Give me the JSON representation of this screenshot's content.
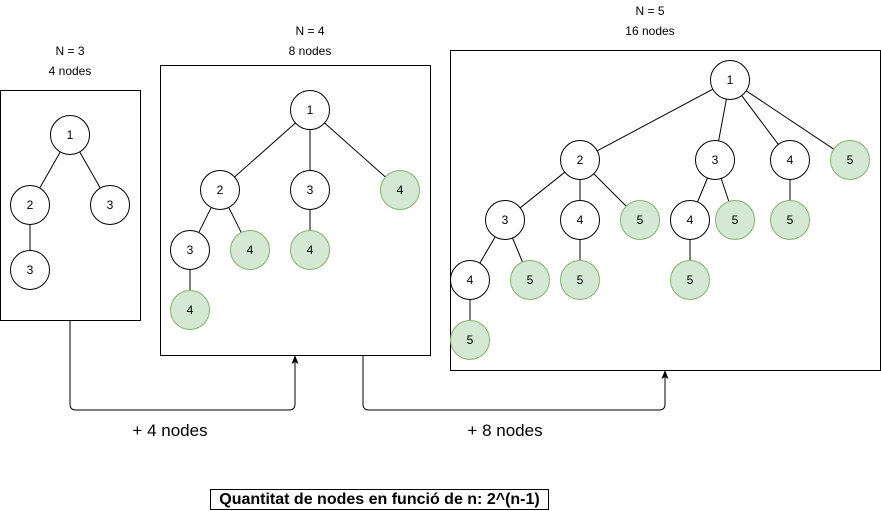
{
  "panels": [
    {
      "title": "N = 3",
      "subtitle": "4 nodes"
    },
    {
      "title": "N = 4",
      "subtitle": "8 nodes"
    },
    {
      "title": "N = 5",
      "subtitle": "16 nodes"
    }
  ],
  "arrows": [
    {
      "label": "+ 4 nodes"
    },
    {
      "label": "+ 8 nodes"
    }
  ],
  "formula": "Quantitat de nodes en funció de n: 2^(n-1)",
  "colors": {
    "new_node_fill": "#d5e8d4",
    "new_node_stroke": "#82b366",
    "node_fill": "#ffffff",
    "stroke": "#000000"
  },
  "trees": [
    {
      "nodes": [
        {
          "id": "a",
          "label": "1",
          "new": false
        },
        {
          "id": "b",
          "label": "2",
          "new": false
        },
        {
          "id": "c",
          "label": "3",
          "new": false
        },
        {
          "id": "d",
          "label": "3",
          "new": false
        }
      ],
      "edges": [
        [
          "a",
          "b"
        ],
        [
          "a",
          "c"
        ],
        [
          "b",
          "d"
        ]
      ]
    },
    {
      "nodes": [
        {
          "id": "a",
          "label": "1",
          "new": false
        },
        {
          "id": "b",
          "label": "2",
          "new": false
        },
        {
          "id": "c",
          "label": "3",
          "new": false
        },
        {
          "id": "d",
          "label": "4",
          "new": true
        },
        {
          "id": "e",
          "label": "3",
          "new": false
        },
        {
          "id": "f",
          "label": "4",
          "new": true
        },
        {
          "id": "g",
          "label": "4",
          "new": true
        },
        {
          "id": "h",
          "label": "4",
          "new": true
        }
      ],
      "edges": [
        [
          "a",
          "b"
        ],
        [
          "a",
          "c"
        ],
        [
          "a",
          "d"
        ],
        [
          "b",
          "e"
        ],
        [
          "b",
          "f"
        ],
        [
          "c",
          "g"
        ],
        [
          "e",
          "h"
        ]
      ]
    },
    {
      "nodes": [
        {
          "id": "a",
          "label": "1",
          "new": false
        },
        {
          "id": "b",
          "label": "2",
          "new": false
        },
        {
          "id": "c",
          "label": "3",
          "new": false
        },
        {
          "id": "d",
          "label": "4",
          "new": false
        },
        {
          "id": "e",
          "label": "5",
          "new": true
        },
        {
          "id": "f",
          "label": "3",
          "new": false
        },
        {
          "id": "g",
          "label": "4",
          "new": false
        },
        {
          "id": "h",
          "label": "5",
          "new": true
        },
        {
          "id": "i",
          "label": "4",
          "new": false
        },
        {
          "id": "j",
          "label": "5",
          "new": true
        },
        {
          "id": "k",
          "label": "5",
          "new": true
        },
        {
          "id": "l",
          "label": "4",
          "new": false
        },
        {
          "id": "m",
          "label": "5",
          "new": true
        },
        {
          "id": "n",
          "label": "5",
          "new": true
        },
        {
          "id": "o",
          "label": "5",
          "new": true
        },
        {
          "id": "p",
          "label": "5",
          "new": true
        }
      ],
      "edges": [
        [
          "a",
          "b"
        ],
        [
          "a",
          "c"
        ],
        [
          "a",
          "d"
        ],
        [
          "a",
          "e"
        ],
        [
          "b",
          "f"
        ],
        [
          "b",
          "g"
        ],
        [
          "b",
          "h"
        ],
        [
          "c",
          "i"
        ],
        [
          "c",
          "j"
        ],
        [
          "d",
          "k"
        ],
        [
          "f",
          "l"
        ],
        [
          "f",
          "m"
        ],
        [
          "g",
          "n"
        ],
        [
          "i",
          "o"
        ],
        [
          "l",
          "p"
        ]
      ]
    }
  ]
}
